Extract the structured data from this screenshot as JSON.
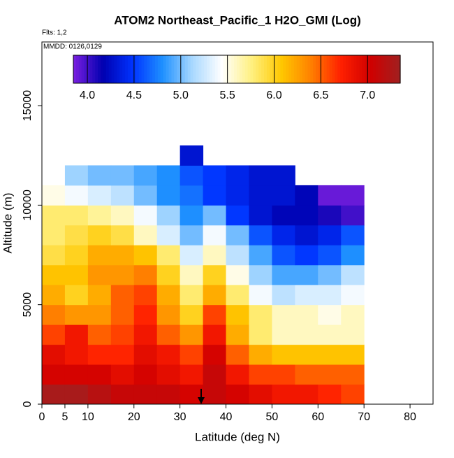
{
  "chart_data": {
    "type": "heatmap",
    "title": "ATOM2 Northeast_Pacific_1 H2O_GMI (Log)",
    "subtitle": "Flts: 1,2",
    "annotation": "MMDD: 0126,0129",
    "x_label": "Latitude (deg N)",
    "y_label": "Altitude (m)",
    "xlim": [
      0,
      85
    ],
    "ylim": [
      0,
      18200
    ],
    "xticks": [
      0,
      5,
      10,
      20,
      30,
      40,
      50,
      60,
      70,
      80
    ],
    "yticks": [
      0,
      5000,
      10000,
      15000
    ],
    "x_edges": [
      0,
      5,
      10,
      15,
      20,
      25,
      30,
      35,
      40,
      45,
      50,
      55,
      60,
      65,
      70
    ],
    "y_edges": [
      0,
      1000,
      2000,
      3000,
      4000,
      5000,
      6000,
      7000,
      8000,
      9000,
      10000,
      11000,
      12000,
      13000
    ],
    "z": [
      [
        7.3,
        7.3,
        7.2,
        7.1,
        7.1,
        7.1,
        7.0,
        7.1,
        7.0,
        6.9,
        6.8,
        6.8,
        6.7,
        6.6
      ],
      [
        7.0,
        7.0,
        7.0,
        6.9,
        7.0,
        6.9,
        6.8,
        7.1,
        6.8,
        6.6,
        6.6,
        6.5,
        6.5,
        6.5
      ],
      [
        6.9,
        6.8,
        6.7,
        6.7,
        6.9,
        6.8,
        6.6,
        7.0,
        6.5,
        6.2,
        6.1,
        6.1,
        6.1,
        6.1
      ],
      [
        6.6,
        6.8,
        6.5,
        6.6,
        6.8,
        6.5,
        6.3,
        6.8,
        6.2,
        5.8,
        5.6,
        5.6,
        5.6,
        5.6
      ],
      [
        6.4,
        6.3,
        6.3,
        6.5,
        6.7,
        6.3,
        6.0,
        6.6,
        6.1,
        5.8,
        5.6,
        5.6,
        5.5,
        5.6
      ],
      [
        6.2,
        6.0,
        6.2,
        6.5,
        6.6,
        6.2,
        5.8,
        6.2,
        5.8,
        5.4,
        5.2,
        5.3,
        5.3,
        5.4
      ],
      [
        6.1,
        6.1,
        6.3,
        6.3,
        6.4,
        6.0,
        5.6,
        6.0,
        5.5,
        5.1,
        4.9,
        4.9,
        5.0,
        5.2
      ],
      [
        5.9,
        6.0,
        6.2,
        6.2,
        6.1,
        5.8,
        5.3,
        5.6,
        5.2,
        4.9,
        4.6,
        4.5,
        4.6,
        4.8
      ],
      [
        5.8,
        5.9,
        6.0,
        5.9,
        5.6,
        5.3,
        5.0,
        5.4,
        5.0,
        4.6,
        4.4,
        4.3,
        4.4,
        4.6
      ],
      [
        5.8,
        5.8,
        5.7,
        5.6,
        5.4,
        5.1,
        4.8,
        5.0,
        4.5,
        4.3,
        4.2,
        4.2,
        4.1,
        4.0
      ],
      [
        5.5,
        5.4,
        5.3,
        5.2,
        5.0,
        4.8,
        4.7,
        4.5,
        4.4,
        4.3,
        4.3,
        4.2,
        3.9,
        3.9
      ],
      [
        null,
        5.1,
        5.0,
        5.0,
        4.9,
        4.8,
        4.6,
        4.5,
        4.4,
        4.3,
        4.3,
        null,
        null,
        null
      ],
      [
        null,
        null,
        null,
        null,
        null,
        null,
        4.3,
        null,
        null,
        null,
        null,
        null,
        null,
        null
      ]
    ],
    "zlim": [
      3.85,
      7.35
    ],
    "zticks": [
      {
        "value": 4,
        "label": "4.0"
      },
      4.5,
      {
        "value": 5,
        "label": "5.0"
      },
      5.5,
      {
        "value": 6,
        "label": "6.0"
      },
      6.5,
      {
        "value": 7,
        "label": "7.0"
      }
    ],
    "colors": [
      "#7b1fe0",
      "#0000b0",
      "#0033ff",
      "#1e90ff",
      "#a8d8ff",
      "#ffffff",
      "#fff080",
      "#ffc800",
      "#ff8000",
      "#ff2000",
      "#d00000",
      "#a02020"
    ]
  }
}
